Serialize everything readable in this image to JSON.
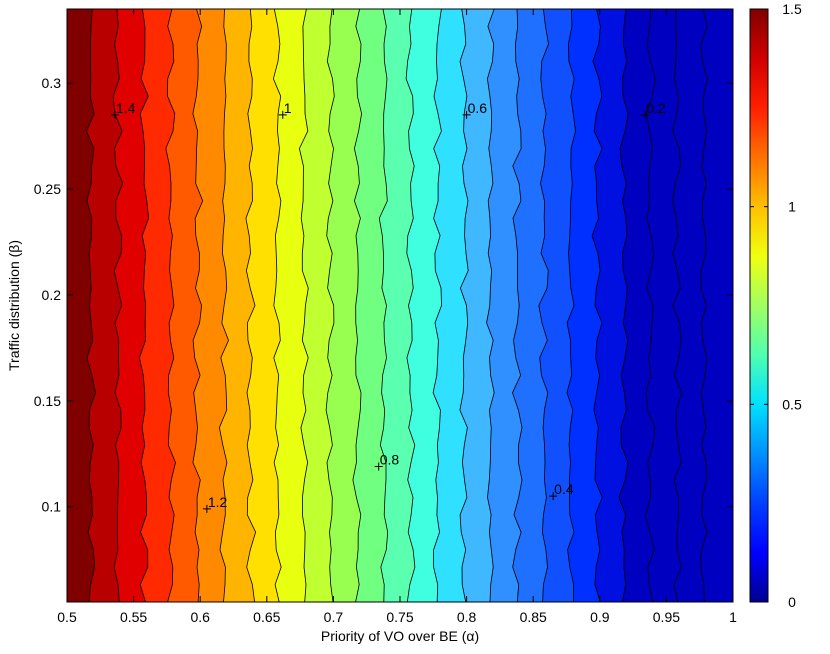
{
  "chart_data": {
    "type": "heatmap",
    "subtype": "filled-contour",
    "title": "",
    "xlabel": "Priority of VO over BE (α)",
    "ylabel": "Traffic distribution (β)",
    "xlim": [
      0.5,
      1.0
    ],
    "ylim": [
      0.055,
      0.335
    ],
    "x_ticks": [
      0.5,
      0.55,
      0.6,
      0.65,
      0.7,
      0.75,
      0.8,
      0.85,
      0.9,
      0.95,
      1.0
    ],
    "x_tick_labels": [
      "0.5",
      "0.55",
      "0.6",
      "0.65",
      "0.7",
      "0.75",
      "0.8",
      "0.85",
      "0.9",
      "0.95",
      "1"
    ],
    "y_ticks": [
      0.1,
      0.15,
      0.2,
      0.25,
      0.3
    ],
    "y_tick_labels": [
      "0.1",
      "0.15",
      "0.2",
      "0.25",
      "0.3"
    ],
    "contour_levels": [
      1.5,
      1.4,
      1.3,
      1.2,
      1.1,
      1.0,
      0.9,
      0.8,
      0.7,
      0.6,
      0.5,
      0.4,
      0.3,
      0.2,
      0.1,
      0.0
    ],
    "contour_alpha_positions": [
      0.518,
      0.538,
      0.558,
      0.578,
      0.598,
      0.618,
      0.638,
      0.658,
      0.678,
      0.698,
      0.718,
      0.738,
      0.758,
      0.778,
      0.798,
      0.818,
      0.838,
      0.858,
      0.878,
      0.898,
      0.918,
      0.938,
      0.958,
      0.978
    ],
    "band_colors": [
      "#800000",
      "#b80000",
      "#e00000",
      "#ff2a00",
      "#ff5a00",
      "#ff8a00",
      "#ffb400",
      "#ffe000",
      "#e8ff10",
      "#c0ff30",
      "#98ff50",
      "#70ff80",
      "#5affb0",
      "#40ffe0",
      "#30e0ff",
      "#40b8ff",
      "#3090ff",
      "#2070ff",
      "#1050ff",
      "#0030ff",
      "#0010e0",
      "#0000c0"
    ],
    "contour_labels": [
      {
        "text": "1.4",
        "alpha": 0.536,
        "beta": 0.285
      },
      {
        "text": "1",
        "alpha": 0.662,
        "beta": 0.285
      },
      {
        "text": "0.6",
        "alpha": 0.8,
        "beta": 0.285
      },
      {
        "text": "0.2",
        "alpha": 0.934,
        "beta": 0.285
      },
      {
        "text": "1.2",
        "alpha": 0.605,
        "beta": 0.099
      },
      {
        "text": "0.8",
        "alpha": 0.734,
        "beta": 0.119
      },
      {
        "text": "0.4",
        "alpha": 0.865,
        "beta": 0.105
      }
    ],
    "colorbar": {
      "min": 0,
      "max": 1.5,
      "ticks": [
        0,
        0.5,
        1,
        1.5
      ],
      "tick_labels": [
        "0",
        "0.5",
        "1",
        "1.5"
      ],
      "colors": [
        "#000090",
        "#0000ff",
        "#0040ff",
        "#0090ff",
        "#00e0ff",
        "#50ffb0",
        "#a0ff60",
        "#f0ff10",
        "#ffc000",
        "#ff7000",
        "#ff2000",
        "#d00000",
        "#800000"
      ]
    },
    "grid": false
  }
}
